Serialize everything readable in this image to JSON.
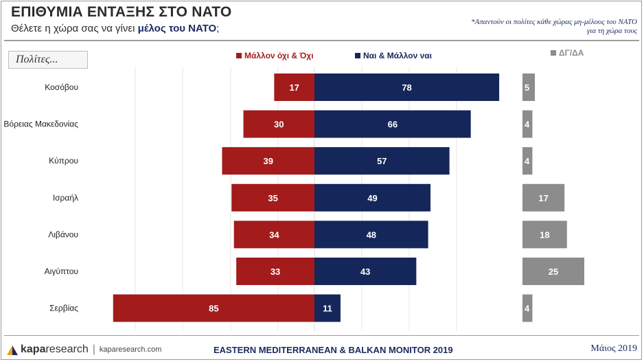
{
  "header": {
    "title": "ΕΠΙΘΥΜΙΑ ΕΝΤΑΞΗΣ ΣΤΟ ΝΑΤΟ",
    "subtitle_plain": "Θέλετε η χώρα σας να γίνει ",
    "subtitle_bold": "μέλος του ΝΑΤΟ",
    "subtitle_end": ";",
    "note_line1": "*Απαντούν οι πολίτες κάθε χώρας μη-μέλους του ΝΑΤΟ",
    "note_line2": "για τη χώρα τους"
  },
  "chart_data": {
    "type": "bar",
    "row_header": "Πολίτες...",
    "categories": [
      "Κοσόβου",
      "Βόρειας Μακεδονίας",
      "Κύπρου",
      "Ισραήλ",
      "Λιβάνου",
      "Αιγύπτου",
      "Σερβίας"
    ],
    "series": [
      {
        "name": "Μάλλον όχι & Όχι",
        "color": "#a31b1b",
        "values": [
          17,
          30,
          39,
          35,
          34,
          33,
          85
        ]
      },
      {
        "name": "Ναι & Μάλλον ναι",
        "color": "#15265a",
        "values": [
          78,
          66,
          57,
          49,
          48,
          43,
          11
        ]
      },
      {
        "name": "ΔΓ/ΔΑ",
        "color": "#8c8c8c",
        "values": [
          5,
          4,
          4,
          17,
          18,
          25,
          4
        ]
      }
    ],
    "grid": true
  },
  "footer": {
    "brand_bold": "kapa",
    "brand_rest": "research",
    "url": "kaparesearch.com",
    "center": "EASTERN MEDITERRANEAN & BALKAN MONITOR 2019",
    "date": "Μάιος 2019"
  }
}
